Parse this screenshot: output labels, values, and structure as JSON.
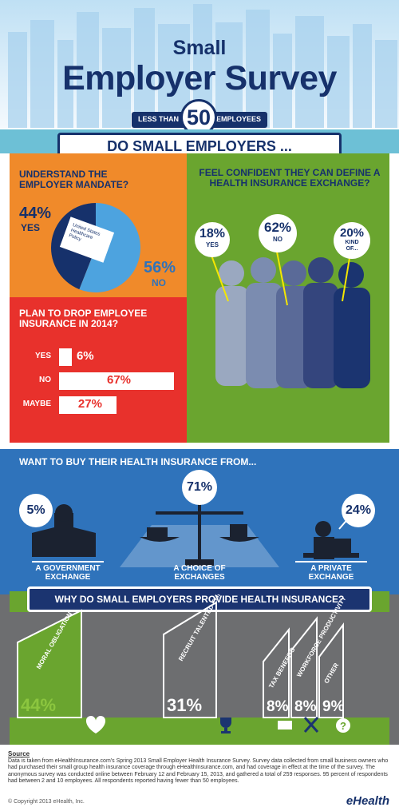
{
  "header": {
    "title_line1": "Small",
    "title_line2": "Employer Survey",
    "size_prefix": "LESS THAN",
    "size_number": "50",
    "size_suffix": "EMPLOYEES"
  },
  "question_banner": "DO SMALL EMPLOYERS ...",
  "mandate": {
    "question": "UNDERSTAND THE EMPLOYER MANDATE?",
    "yes_label": "YES",
    "no_label": "NO",
    "book_label": "United States Healthcare Policy"
  },
  "confident": {
    "question": "FEEL CONFIDENT THEY CAN DEFINE A HEALTH INSURANCE EXCHANGE?",
    "answers": [
      {
        "pct": "18%",
        "label": "YES"
      },
      {
        "pct": "62%",
        "label": "NO"
      },
      {
        "pct": "20%",
        "label": "KIND OF..."
      }
    ]
  },
  "drop": {
    "question": "PLAN TO DROP EMPLOYEE INSURANCE IN 2014?"
  },
  "buy": {
    "question": "WANT TO BUY THEIR HEALTH INSURANCE FROM...",
    "options": [
      {
        "pct": "5%",
        "label": "A GOVERNMENT EXCHANGE"
      },
      {
        "pct": "71%",
        "label": "A CHOICE OF EXCHANGES"
      },
      {
        "pct": "24%",
        "label": "A PRIVATE EXCHANGE"
      }
    ]
  },
  "why": {
    "question": "WHY DO SMALL EMPLOYERS PROVIDE HEALTH INSURANCE?"
  },
  "source": {
    "heading": "Source",
    "text": "Data is taken from eHealthInsurance.com's Spring 2013 Small Employer Health Insurance Survey. Survey data collected from small business owners who had purchased their small group health insurance coverage through eHealthInsurance.com, and had coverage in effect at the time of the survey. The anonymous survey was conducted online between February 12 and February 15, 2013, and gathered a total of 259 responses. 95 percent of respondents had between 2 and 10 employees. All respondents reported having fewer than 50 employees.",
    "copyright": "© Copyright 2013 eHealth, Inc.",
    "brand": "eHealth"
  },
  "colors": {
    "navy": "#16316b",
    "orange": "#f08a2a",
    "green": "#6aa52f",
    "red": "#e8312c",
    "blue": "#2f73bb",
    "gray": "#6d6e70"
  },
  "chart_data": [
    {
      "type": "pie",
      "title": "UNDERSTAND THE EMPLOYER MANDATE?",
      "categories": [
        "YES",
        "NO"
      ],
      "values": [
        44,
        56
      ],
      "labels": [
        "44%",
        "56%"
      ]
    },
    {
      "type": "bar",
      "title": "FEEL CONFIDENT THEY CAN DEFINE A HEALTH INSURANCE EXCHANGE?",
      "categories": [
        "YES",
        "NO",
        "KIND OF..."
      ],
      "values": [
        18,
        62,
        20
      ],
      "labels": [
        "18%",
        "62%",
        "20%"
      ]
    },
    {
      "type": "bar",
      "title": "PLAN TO DROP EMPLOYEE INSURANCE IN 2014?",
      "categories": [
        "YES",
        "NO",
        "MAYBE"
      ],
      "values": [
        6,
        67,
        27
      ],
      "labels": [
        "6%",
        "67%",
        "27%"
      ],
      "xlim": [
        0,
        100
      ]
    },
    {
      "type": "bar",
      "title": "WANT TO BUY THEIR HEALTH INSURANCE FROM...",
      "categories": [
        "A GOVERNMENT EXCHANGE",
        "A CHOICE OF EXCHANGES",
        "A PRIVATE EXCHANGE"
      ],
      "values": [
        5,
        71,
        24
      ],
      "labels": [
        "5%",
        "71%",
        "24%"
      ]
    },
    {
      "type": "bar",
      "title": "WHY DO SMALL EMPLOYERS PROVIDE HEALTH INSURANCE?",
      "categories": [
        "MORAL OBLIGATION",
        "RECRUIT TALENTED EMPLOYEES",
        "TAX BENEFITS",
        "WORKFORCE PRODUCTIVITY",
        "OTHER"
      ],
      "values": [
        44,
        31,
        8,
        8,
        9
      ],
      "labels": [
        "44%",
        "31%",
        "8%",
        "8%",
        "9%"
      ]
    }
  ]
}
